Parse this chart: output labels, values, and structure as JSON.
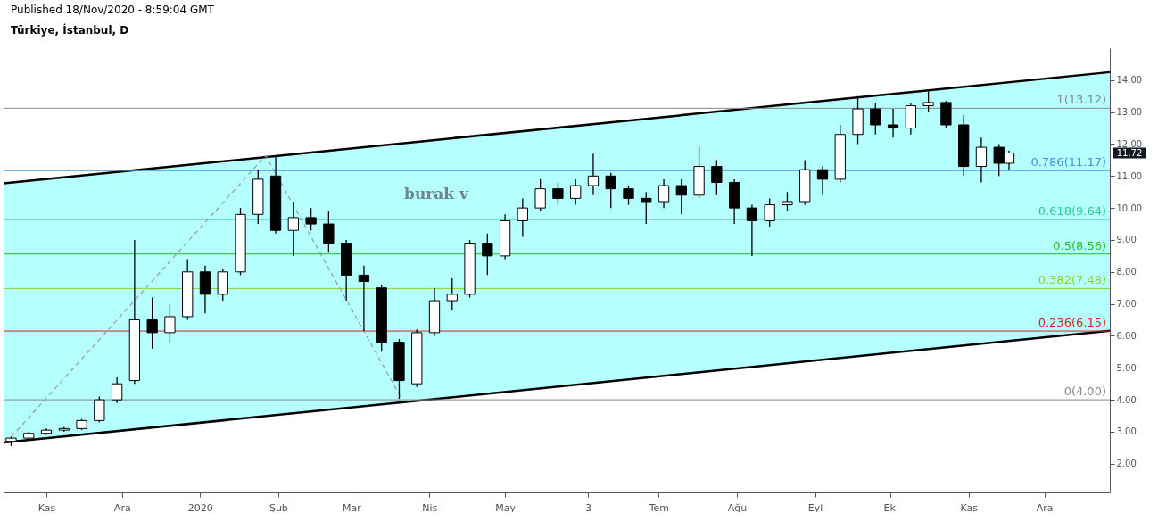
{
  "chart_data": {
    "type": "candlestick",
    "title": "Türkiye, İstanbul, D",
    "subtitle": "Published 18/Nov/2020 - 8:59:04 GMT",
    "color": "#000000",
    "x": [
      "2019-10-18",
      "2019-10-25",
      "2019-11-01",
      "2019-11-08",
      "2019-11-15",
      "2019-11-22",
      "2019-11-29",
      "2019-12-06",
      "2019-12-13",
      "2019-12-20",
      "2019-12-27",
      "2020-01-03",
      "2020-01-10",
      "2020-01-17",
      "2020-01-24",
      "2020-01-31",
      "2020-02-07",
      "2020-02-14",
      "2020-02-21",
      "2020-02-28",
      "2020-03-06",
      "2020-03-13",
      "2020-03-20",
      "2020-03-27",
      "2020-04-03",
      "2020-04-10",
      "2020-04-17",
      "2020-04-24",
      "2020-05-01",
      "2020-05-08",
      "2020-05-15",
      "2020-05-22",
      "2020-05-29",
      "2020-06-05",
      "2020-06-12",
      "2020-06-19",
      "2020-06-26",
      "2020-07-03",
      "2020-07-10",
      "2020-07-17",
      "2020-07-24",
      "2020-07-31",
      "2020-08-07",
      "2020-08-14",
      "2020-08-21",
      "2020-08-28",
      "2020-09-04",
      "2020-09-11",
      "2020-09-18",
      "2020-09-25",
      "2020-10-02",
      "2020-10-09",
      "2020-10-16",
      "2020-10-23",
      "2020-10-30",
      "2020-11-06",
      "2020-11-13",
      "2020-11-17"
    ],
    "ohlc": [
      [
        2.7,
        2.85,
        2.55,
        2.8
      ],
      [
        2.8,
        3.0,
        2.75,
        2.95
      ],
      [
        2.95,
        3.1,
        2.9,
        3.05
      ],
      [
        3.05,
        3.15,
        3.0,
        3.1
      ],
      [
        3.1,
        3.4,
        3.05,
        3.35
      ],
      [
        3.35,
        4.1,
        3.3,
        4.0
      ],
      [
        4.0,
        4.7,
        3.9,
        4.5
      ],
      [
        4.6,
        9.0,
        4.5,
        6.5
      ],
      [
        6.5,
        7.2,
        5.6,
        6.1
      ],
      [
        6.1,
        7.0,
        5.8,
        6.6
      ],
      [
        6.6,
        8.4,
        6.5,
        8.0
      ],
      [
        8.0,
        8.2,
        6.7,
        7.3
      ],
      [
        7.3,
        8.1,
        7.1,
        8.0
      ],
      [
        8.0,
        10.0,
        7.9,
        9.8
      ],
      [
        9.8,
        11.2,
        9.5,
        10.9
      ],
      [
        11.0,
        11.64,
        9.2,
        9.3
      ],
      [
        9.3,
        10.2,
        8.5,
        9.7
      ],
      [
        9.7,
        10.0,
        9.3,
        9.5
      ],
      [
        9.5,
        9.9,
        8.6,
        8.9
      ],
      [
        8.9,
        9.0,
        7.1,
        7.9
      ],
      [
        7.9,
        8.2,
        6.15,
        7.7
      ],
      [
        7.5,
        7.6,
        5.5,
        5.8
      ],
      [
        5.8,
        5.9,
        4.03,
        4.6
      ],
      [
        4.5,
        6.2,
        4.4,
        6.1
      ],
      [
        6.1,
        7.5,
        6.0,
        7.1
      ],
      [
        7.1,
        7.8,
        6.8,
        7.3
      ],
      [
        7.3,
        9.0,
        7.2,
        8.9
      ],
      [
        8.9,
        9.2,
        7.9,
        8.5
      ],
      [
        8.5,
        9.8,
        8.4,
        9.6
      ],
      [
        9.6,
        10.3,
        9.1,
        10.0
      ],
      [
        10.0,
        10.9,
        9.9,
        10.6
      ],
      [
        10.6,
        10.8,
        10.1,
        10.3
      ],
      [
        10.3,
        10.9,
        10.1,
        10.7
      ],
      [
        10.7,
        11.7,
        10.4,
        11.0
      ],
      [
        11.0,
        11.1,
        10.0,
        10.6
      ],
      [
        10.6,
        10.7,
        10.1,
        10.3
      ],
      [
        10.3,
        10.5,
        9.5,
        10.2
      ],
      [
        10.2,
        10.9,
        10.0,
        10.7
      ],
      [
        10.7,
        10.9,
        9.8,
        10.4
      ],
      [
        10.4,
        11.9,
        10.3,
        11.3
      ],
      [
        11.3,
        11.5,
        10.4,
        10.8
      ],
      [
        10.8,
        10.9,
        9.5,
        10.0
      ],
      [
        10.0,
        10.1,
        8.5,
        9.6
      ],
      [
        9.6,
        10.3,
        9.4,
        10.1
      ],
      [
        10.1,
        10.5,
        9.9,
        10.2
      ],
      [
        10.2,
        11.5,
        10.1,
        11.2
      ],
      [
        11.2,
        11.3,
        10.4,
        10.9
      ],
      [
        10.9,
        12.6,
        10.8,
        12.3
      ],
      [
        12.3,
        13.5,
        12.0,
        13.1
      ],
      [
        13.1,
        13.3,
        12.3,
        12.6
      ],
      [
        12.6,
        13.1,
        12.2,
        12.5
      ],
      [
        12.5,
        13.3,
        12.3,
        13.2
      ],
      [
        13.2,
        13.65,
        13.0,
        13.3
      ],
      [
        13.3,
        13.35,
        12.5,
        12.6
      ],
      [
        12.6,
        12.9,
        11.0,
        11.3
      ],
      [
        11.3,
        12.2,
        10.8,
        11.9
      ],
      [
        11.9,
        12.0,
        11.0,
        11.4
      ],
      [
        11.4,
        11.8,
        11.2,
        11.72
      ]
    ],
    "series": [
      {
        "type": "line",
        "x": [
          "2019-10-15",
          "2020-12-27"
        ],
        "values": [
          10.77,
          14.25
        ],
        "upper": [
          10.77,
          14.25
        ],
        "lower": [
          2.66,
          6.16
        ],
        "color": "#000000"
      },
      {
        "type": "line",
        "x": [
          "2019-10-15",
          "2020-12-27"
        ],
        "values": [
          2.66,
          6.16
        ],
        "color": "#000000"
      },
      {
        "type": "line",
        "x": [
          "2019-10-16",
          "2020-01-27",
          "2020-03-21"
        ],
        "values": [
          2.66,
          11.64,
          4.03
        ],
        "color": "#999999",
        "line_style": "dashed"
      }
    ],
    "ref_lines": [
      {
        "axis": "y",
        "value": 13.12,
        "label": "1(13.12)",
        "color": "#888888"
      },
      {
        "axis": "y",
        "value": 11.17,
        "label": "0.786(11.17)",
        "color": "#3d94db"
      },
      {
        "axis": "y",
        "value": 9.64,
        "label": "0.618(9.64)",
        "color": "#2ecc8f"
      },
      {
        "axis": "y",
        "value": 8.56,
        "label": "0.5(8.56)",
        "color": "#22bb22"
      },
      {
        "axis": "y",
        "value": 7.48,
        "label": "0.382(7.48)",
        "color": "#99cc33"
      },
      {
        "axis": "y",
        "value": 6.15,
        "label": "0.236(6.15)",
        "color": "#dd2222"
      },
      {
        "axis": "y",
        "value": 4.0,
        "label": "0(4.00)",
        "color": "#888888"
      }
    ],
    "annotations": [
      "burak v",
      "11.72"
    ],
    "xlim": [
      "2019-10-15",
      "2020-12-27"
    ],
    "xticks": [
      {
        "value": "2019-11-01",
        "label": "Kas"
      },
      {
        "value": "2019-12-01",
        "label": "Ara"
      },
      {
        "value": "2020-01-01",
        "label": "2020"
      },
      {
        "value": "2020-02-01",
        "label": "Şub"
      },
      {
        "value": "2020-03-01",
        "label": "Mar"
      },
      {
        "value": "2020-04-01",
        "label": "Nis"
      },
      {
        "value": "2020-05-01",
        "label": "May"
      },
      {
        "value": "2020-06-03",
        "label": "3"
      },
      {
        "value": "2020-07-01",
        "label": "Tem"
      },
      {
        "value": "2020-08-01",
        "label": "Ağu"
      },
      {
        "value": "2020-09-01",
        "label": "Eyl"
      },
      {
        "value": "2020-10-01",
        "label": "Eki"
      },
      {
        "value": "2020-11-01",
        "label": "Kas"
      },
      {
        "value": "2020-12-01",
        "label": "Ara"
      }
    ],
    "ylim": [
      1.1,
      15.0
    ],
    "yticks": [
      {
        "value": 2,
        "label": "2.00"
      },
      {
        "value": 3,
        "label": "3.00"
      },
      {
        "value": 4,
        "label": "4.00"
      },
      {
        "value": 5,
        "label": "5.00"
      },
      {
        "value": 6,
        "label": "6.00"
      },
      {
        "value": 7,
        "label": "7.00"
      },
      {
        "value": 8,
        "label": "8.00"
      },
      {
        "value": 9,
        "label": "9.00"
      },
      {
        "value": 10,
        "label": "10.00"
      },
      {
        "value": 11,
        "label": "11.00"
      },
      {
        "value": 12,
        "label": "12.00"
      },
      {
        "value": 13,
        "label": "13.00"
      },
      {
        "value": 14,
        "label": "14.00"
      }
    ],
    "grid": false
  }
}
